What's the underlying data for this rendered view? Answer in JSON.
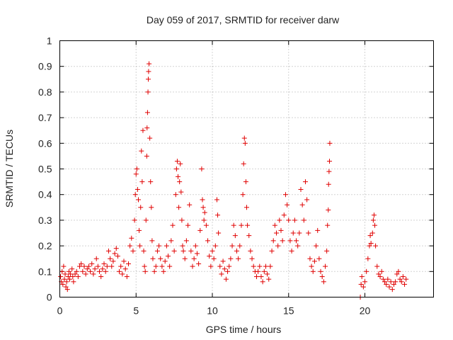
{
  "chart_data": {
    "type": "scatter",
    "title": "Day 059 of 2017, SRMTID for receiver darw",
    "xlabel": "GPS time / hours",
    "ylabel": "SRMTID / TECUs",
    "xlim": [
      0,
      24.5
    ],
    "ylim": [
      0,
      1
    ],
    "x_ticks": [
      0,
      5,
      10,
      15,
      20
    ],
    "x_tick_labels": [
      "0",
      "5",
      "10",
      "15",
      "20"
    ],
    "y_ticks": [
      0,
      0.1,
      0.2,
      0.3,
      0.4,
      0.5,
      0.6,
      0.7,
      0.8,
      0.9,
      1
    ],
    "y_tick_labels": [
      "0",
      "0.1",
      "0.2",
      "0.3",
      "0.4",
      "0.5",
      "0.6",
      "0.7",
      "0.8",
      "0.9",
      "1"
    ],
    "grid": true,
    "marker": "+",
    "marker_color": "#e00000",
    "series": [
      {
        "name": "SRMTID",
        "points": [
          [
            0.05,
            0.08
          ],
          [
            0.1,
            0.06
          ],
          [
            0.15,
            0.1
          ],
          [
            0.2,
            0.05
          ],
          [
            0.25,
            0.12
          ],
          [
            0.3,
            0.07
          ],
          [
            0.35,
            0.09
          ],
          [
            0.4,
            0.04
          ],
          [
            0.45,
            0.06
          ],
          [
            0.5,
            0.03
          ],
          [
            0.55,
            0.08
          ],
          [
            0.6,
            0.1
          ],
          [
            0.65,
            0.07
          ],
          [
            0.7,
            0.09
          ],
          [
            0.8,
            0.11
          ],
          [
            0.85,
            0.08
          ],
          [
            0.9,
            0.06
          ],
          [
            1.0,
            0.09
          ],
          [
            1.1,
            0.1
          ],
          [
            1.2,
            0.08
          ],
          [
            1.3,
            0.12
          ],
          [
            1.4,
            0.13
          ],
          [
            1.5,
            0.1
          ],
          [
            1.6,
            0.12
          ],
          [
            1.7,
            0.09
          ],
          [
            1.8,
            0.11
          ],
          [
            1.9,
            0.12
          ],
          [
            2.0,
            0.1
          ],
          [
            2.1,
            0.13
          ],
          [
            2.2,
            0.09
          ],
          [
            2.3,
            0.11
          ],
          [
            2.4,
            0.15
          ],
          [
            2.5,
            0.12
          ],
          [
            2.6,
            0.1
          ],
          [
            2.7,
            0.08
          ],
          [
            2.8,
            0.11
          ],
          [
            2.9,
            0.13
          ],
          [
            3.0,
            0.1
          ],
          [
            3.1,
            0.12
          ],
          [
            3.2,
            0.18
          ],
          [
            3.3,
            0.15
          ],
          [
            3.4,
            0.12
          ],
          [
            3.5,
            0.14
          ],
          [
            3.6,
            0.17
          ],
          [
            3.7,
            0.19
          ],
          [
            3.8,
            0.16
          ],
          [
            3.9,
            0.1
          ],
          [
            4.0,
            0.12
          ],
          [
            4.1,
            0.09
          ],
          [
            4.2,
            0.14
          ],
          [
            4.3,
            0.11
          ],
          [
            4.4,
            0.08
          ],
          [
            4.5,
            0.13
          ],
          [
            4.6,
            0.2
          ],
          [
            4.7,
            0.23
          ],
          [
            4.8,
            0.18
          ],
          [
            4.9,
            0.3
          ],
          [
            4.95,
            0.4
          ],
          [
            5.0,
            0.48
          ],
          [
            5.05,
            0.5
          ],
          [
            5.1,
            0.42
          ],
          [
            5.15,
            0.38
          ],
          [
            5.2,
            0.26
          ],
          [
            5.25,
            0.2
          ],
          [
            5.3,
            0.35
          ],
          [
            5.35,
            0.57
          ],
          [
            5.4,
            0.45
          ],
          [
            5.45,
            0.65
          ],
          [
            5.5,
            0.18
          ],
          [
            5.55,
            0.12
          ],
          [
            5.6,
            0.1
          ],
          [
            5.65,
            0.3
          ],
          [
            5.7,
            0.55
          ],
          [
            5.72,
            0.66
          ],
          [
            5.75,
            0.72
          ],
          [
            5.78,
            0.8
          ],
          [
            5.8,
            0.85
          ],
          [
            5.82,
            0.88
          ],
          [
            5.85,
            0.91
          ],
          [
            5.9,
            0.62
          ],
          [
            5.95,
            0.45
          ],
          [
            6.0,
            0.35
          ],
          [
            6.05,
            0.22
          ],
          [
            6.1,
            0.15
          ],
          [
            6.2,
            0.1
          ],
          [
            6.3,
            0.12
          ],
          [
            6.4,
            0.18
          ],
          [
            6.5,
            0.2
          ],
          [
            6.6,
            0.15
          ],
          [
            6.7,
            0.12
          ],
          [
            6.8,
            0.1
          ],
          [
            6.9,
            0.14
          ],
          [
            7.0,
            0.2
          ],
          [
            7.1,
            0.16
          ],
          [
            7.2,
            0.12
          ],
          [
            7.3,
            0.22
          ],
          [
            7.4,
            0.28
          ],
          [
            7.5,
            0.18
          ],
          [
            7.6,
            0.4
          ],
          [
            7.65,
            0.5
          ],
          [
            7.7,
            0.53
          ],
          [
            7.75,
            0.47
          ],
          [
            7.8,
            0.35
          ],
          [
            7.85,
            0.45
          ],
          [
            7.9,
            0.52
          ],
          [
            7.95,
            0.41
          ],
          [
            8.0,
            0.3
          ],
          [
            8.05,
            0.2
          ],
          [
            8.1,
            0.18
          ],
          [
            8.2,
            0.15
          ],
          [
            8.3,
            0.22
          ],
          [
            8.4,
            0.28
          ],
          [
            8.5,
            0.36
          ],
          [
            8.6,
            0.18
          ],
          [
            8.7,
            0.12
          ],
          [
            8.8,
            0.15
          ],
          [
            8.9,
            0.2
          ],
          [
            9.0,
            0.17
          ],
          [
            9.1,
            0.13
          ],
          [
            9.2,
            0.26
          ],
          [
            9.3,
            0.5
          ],
          [
            9.35,
            0.38
          ],
          [
            9.4,
            0.35
          ],
          [
            9.45,
            0.3
          ],
          [
            9.5,
            0.33
          ],
          [
            9.6,
            0.28
          ],
          [
            9.7,
            0.22
          ],
          [
            9.8,
            0.16
          ],
          [
            9.9,
            0.12
          ],
          [
            10.0,
            0.18
          ],
          [
            10.1,
            0.15
          ],
          [
            10.2,
            0.2
          ],
          [
            10.3,
            0.38
          ],
          [
            10.35,
            0.32
          ],
          [
            10.4,
            0.25
          ],
          [
            10.5,
            0.12
          ],
          [
            10.6,
            0.09
          ],
          [
            10.7,
            0.14
          ],
          [
            10.8,
            0.11
          ],
          [
            10.9,
            0.07
          ],
          [
            11.0,
            0.1
          ],
          [
            11.1,
            0.12
          ],
          [
            11.2,
            0.15
          ],
          [
            11.3,
            0.2
          ],
          [
            11.4,
            0.28
          ],
          [
            11.5,
            0.24
          ],
          [
            11.6,
            0.18
          ],
          [
            11.7,
            0.15
          ],
          [
            11.8,
            0.2
          ],
          [
            11.9,
            0.28
          ],
          [
            12.0,
            0.4
          ],
          [
            12.05,
            0.52
          ],
          [
            12.1,
            0.62
          ],
          [
            12.15,
            0.6
          ],
          [
            12.2,
            0.45
          ],
          [
            12.25,
            0.35
          ],
          [
            12.3,
            0.28
          ],
          [
            12.4,
            0.24
          ],
          [
            12.5,
            0.18
          ],
          [
            12.6,
            0.15
          ],
          [
            12.7,
            0.12
          ],
          [
            12.8,
            0.1
          ],
          [
            12.9,
            0.08
          ],
          [
            13.0,
            0.1
          ],
          [
            13.1,
            0.12
          ],
          [
            13.2,
            0.08
          ],
          [
            13.3,
            0.06
          ],
          [
            13.4,
            0.1
          ],
          [
            13.5,
            0.12
          ],
          [
            13.6,
            0.09
          ],
          [
            13.7,
            0.07
          ],
          [
            13.8,
            0.12
          ],
          [
            13.9,
            0.18
          ],
          [
            14.0,
            0.22
          ],
          [
            14.1,
            0.28
          ],
          [
            14.2,
            0.25
          ],
          [
            14.3,
            0.2
          ],
          [
            14.4,
            0.3
          ],
          [
            14.5,
            0.26
          ],
          [
            14.6,
            0.22
          ],
          [
            14.7,
            0.32
          ],
          [
            14.8,
            0.4
          ],
          [
            14.9,
            0.36
          ],
          [
            15.0,
            0.3
          ],
          [
            15.1,
            0.22
          ],
          [
            15.2,
            0.18
          ],
          [
            15.3,
            0.25
          ],
          [
            15.4,
            0.3
          ],
          [
            15.5,
            0.22
          ],
          [
            15.6,
            0.2
          ],
          [
            15.7,
            0.25
          ],
          [
            15.8,
            0.42
          ],
          [
            15.9,
            0.36
          ],
          [
            16.0,
            0.3
          ],
          [
            16.1,
            0.45
          ],
          [
            16.2,
            0.38
          ],
          [
            16.3,
            0.25
          ],
          [
            16.4,
            0.15
          ],
          [
            16.5,
            0.12
          ],
          [
            16.6,
            0.1
          ],
          [
            16.7,
            0.14
          ],
          [
            16.8,
            0.2
          ],
          [
            16.9,
            0.26
          ],
          [
            17.0,
            0.15
          ],
          [
            17.1,
            0.1
          ],
          [
            17.2,
            0.08
          ],
          [
            17.3,
            0.06
          ],
          [
            17.4,
            0.12
          ],
          [
            17.5,
            0.18
          ],
          [
            17.55,
            0.28
          ],
          [
            17.6,
            0.34
          ],
          [
            17.62,
            0.44
          ],
          [
            17.65,
            0.49
          ],
          [
            17.68,
            0.53
          ],
          [
            17.7,
            0.6
          ],
          [
            19.7,
            0.0
          ],
          [
            19.75,
            0.05
          ],
          [
            19.8,
            0.08
          ],
          [
            19.9,
            0.04
          ],
          [
            20.0,
            0.06
          ],
          [
            20.1,
            0.1
          ],
          [
            20.2,
            0.15
          ],
          [
            20.3,
            0.2
          ],
          [
            20.35,
            0.24
          ],
          [
            20.4,
            0.21
          ],
          [
            20.5,
            0.25
          ],
          [
            20.55,
            0.3
          ],
          [
            20.6,
            0.32
          ],
          [
            20.65,
            0.28
          ],
          [
            20.7,
            0.2
          ],
          [
            20.8,
            0.12
          ],
          [
            20.9,
            0.09
          ],
          [
            21.0,
            0.08
          ],
          [
            21.1,
            0.1
          ],
          [
            21.2,
            0.07
          ],
          [
            21.3,
            0.06
          ],
          [
            21.4,
            0.05
          ],
          [
            21.5,
            0.07
          ],
          [
            21.6,
            0.04
          ],
          [
            21.7,
            0.06
          ],
          [
            21.8,
            0.03
          ],
          [
            21.9,
            0.05
          ],
          [
            22.0,
            0.06
          ],
          [
            22.1,
            0.09
          ],
          [
            22.2,
            0.1
          ],
          [
            22.3,
            0.07
          ],
          [
            22.4,
            0.06
          ],
          [
            22.5,
            0.08
          ],
          [
            22.6,
            0.05
          ],
          [
            22.7,
            0.07
          ]
        ]
      }
    ]
  }
}
